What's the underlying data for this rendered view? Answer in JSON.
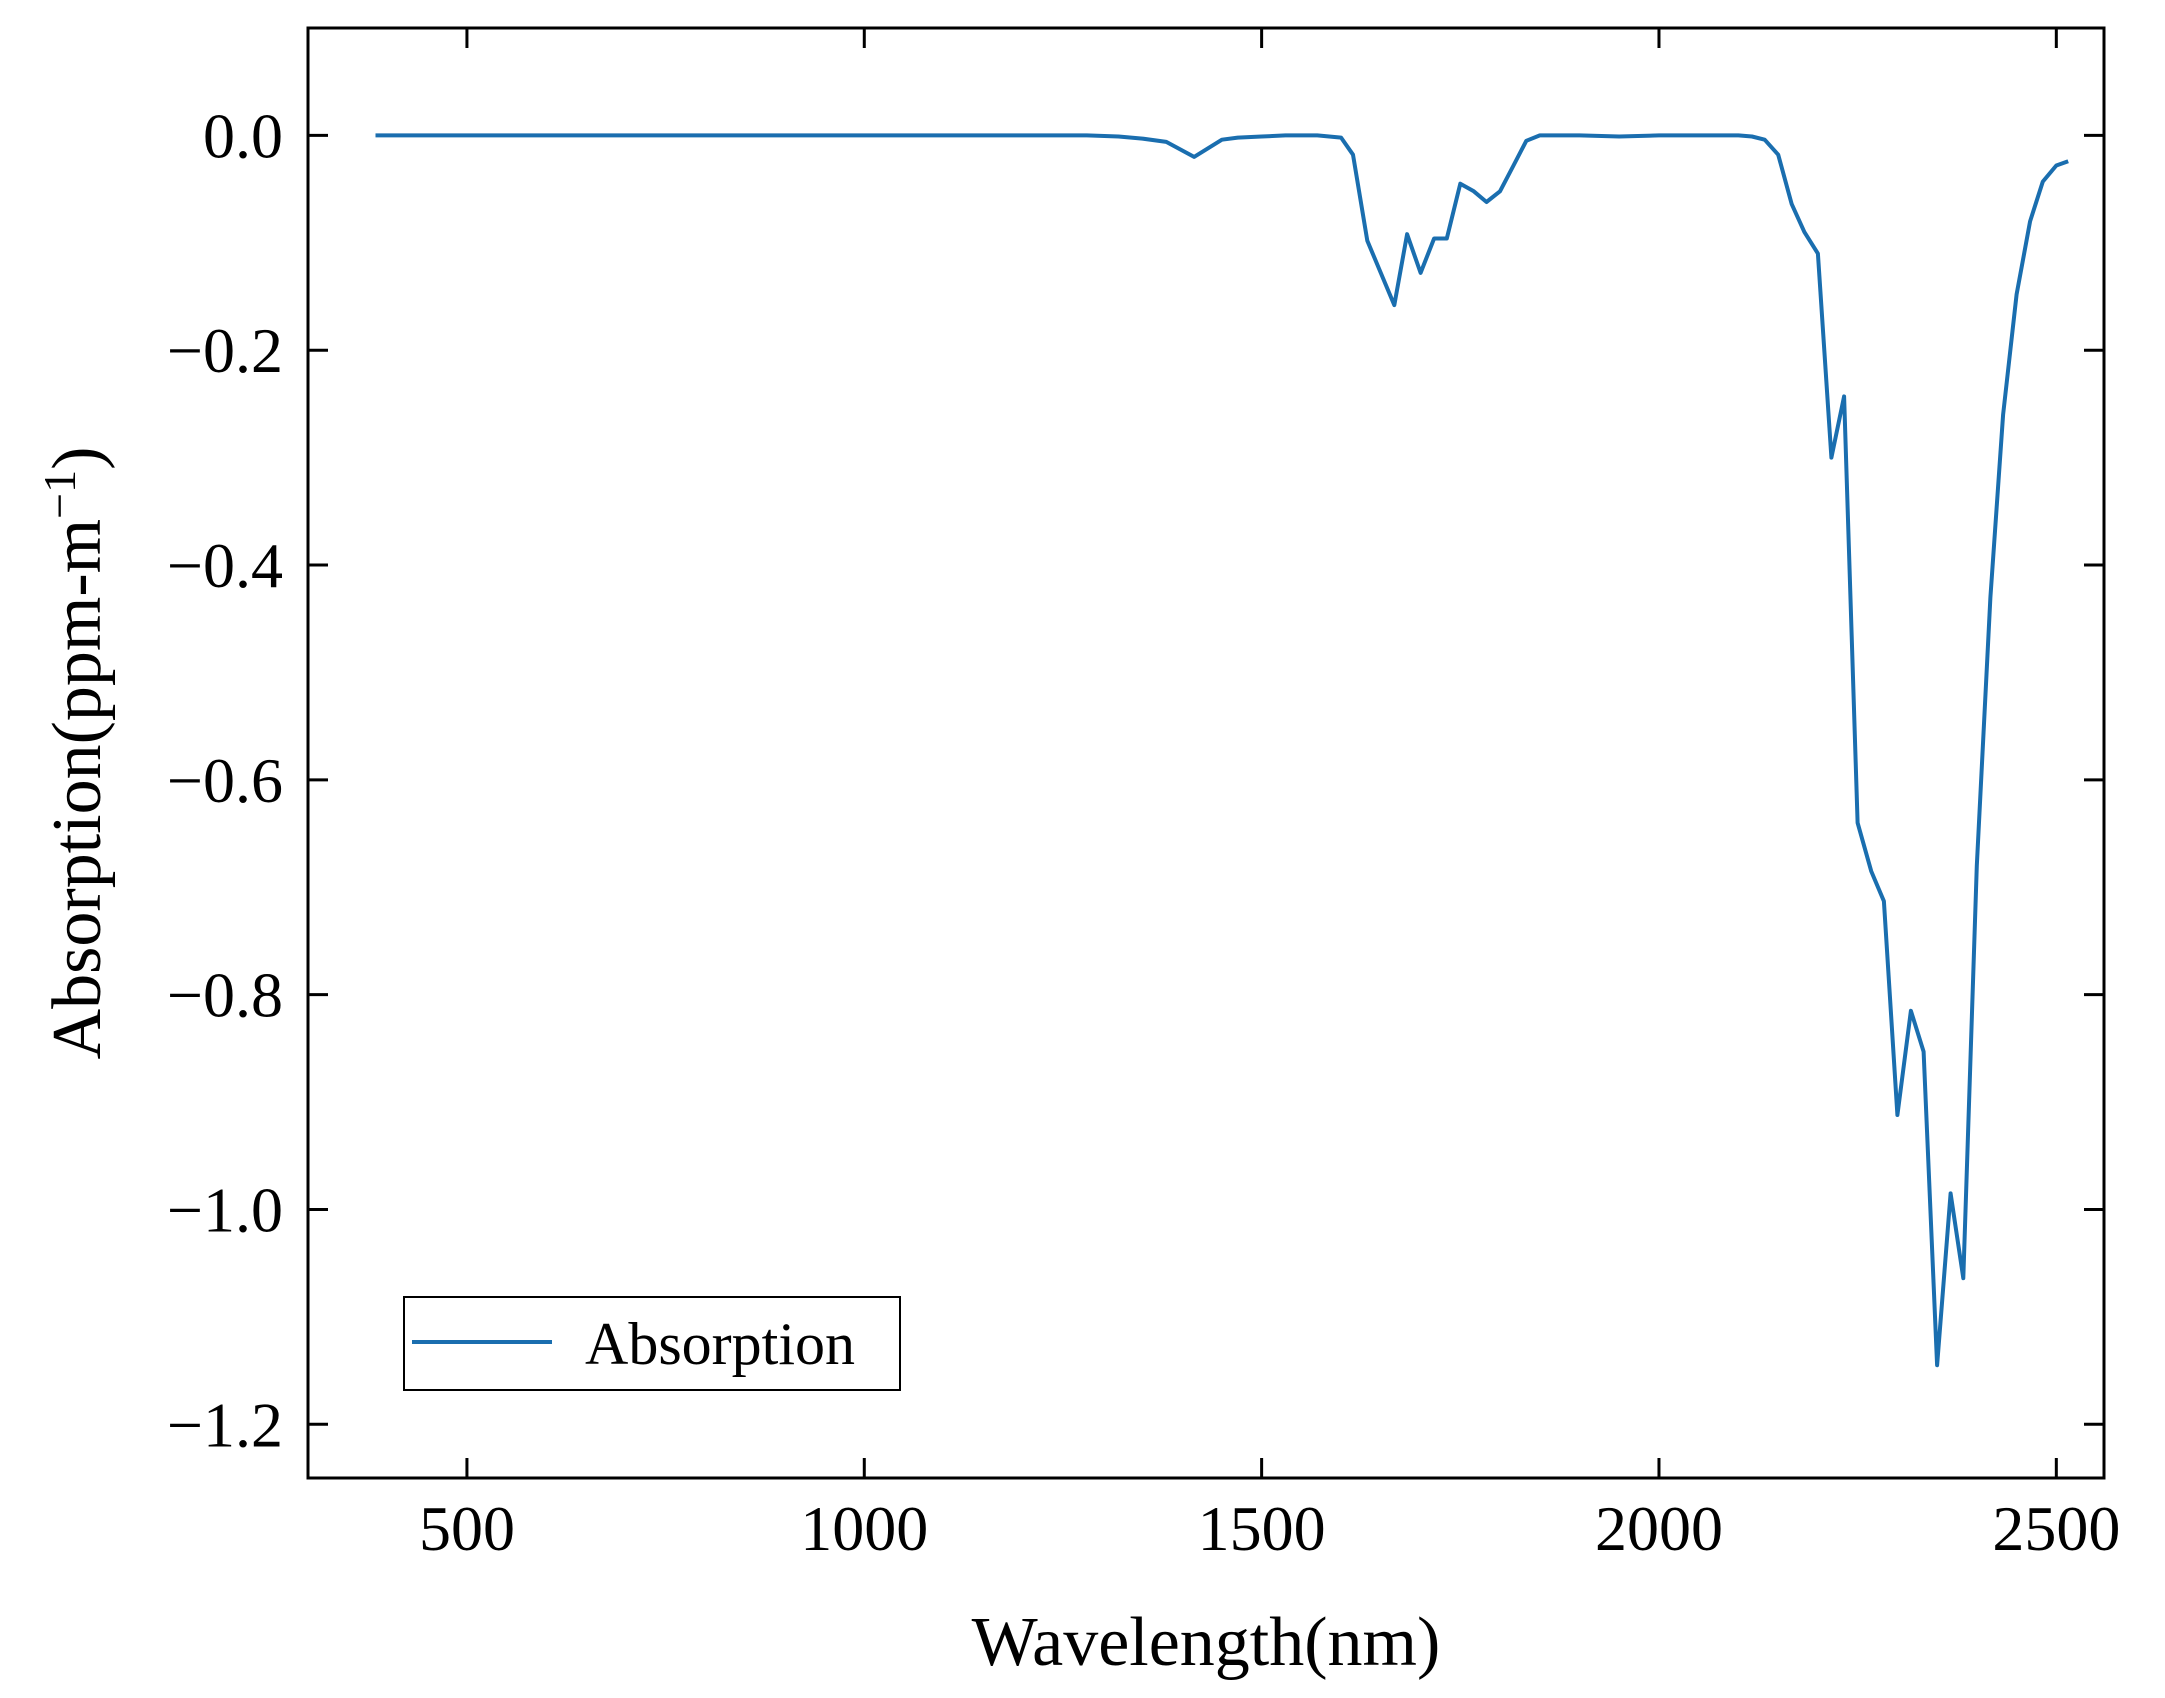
{
  "chart_data": {
    "type": "line",
    "title": "",
    "xlabel": "Wavelength(nm)",
    "ylabel_main": "Absorption(ppm-m",
    "ylabel_sup": "−1",
    "ylabel_close": ")",
    "xlim": [
      300,
      2560
    ],
    "ylim": [
      -1.25,
      0.1
    ],
    "xticks": [
      500,
      1000,
      1500,
      2000,
      2500
    ],
    "xtick_labels": [
      "500",
      "1000",
      "1500",
      "2000",
      "2500"
    ],
    "yticks": [
      0.0,
      -0.2,
      -0.4,
      -0.6,
      -0.8,
      -1.0,
      -1.2
    ],
    "ytick_labels": [
      "0.0",
      "−0.2",
      "−0.4",
      "−0.6",
      "−0.8",
      "−1.0",
      "−1.2"
    ],
    "grid": false,
    "legend_position": "bottom-left",
    "series": [
      {
        "name": "Absorption",
        "color": "#1a6eaf",
        "x": [
          385,
          450,
          600,
          800,
          1000,
          1200,
          1280,
          1320,
          1350,
          1380,
          1415,
          1450,
          1470,
          1500,
          1530,
          1570,
          1600,
          1615,
          1633,
          1667,
          1683,
          1700,
          1717,
          1733,
          1750,
          1767,
          1783,
          1800,
          1817,
          1833,
          1850,
          1900,
          1950,
          2000,
          2050,
          2100,
          2117,
          2133,
          2150,
          2167,
          2183,
          2200,
          2217,
          2233,
          2250,
          2267,
          2283,
          2300,
          2317,
          2333,
          2350,
          2367,
          2383,
          2400,
          2417,
          2433,
          2450,
          2467,
          2483,
          2500,
          2515
        ],
        "y": [
          0.0,
          0.0,
          0.0,
          0.0,
          0.0,
          0.0,
          0.0,
          -0.001,
          -0.003,
          -0.006,
          -0.02,
          -0.004,
          -0.002,
          -0.001,
          0.0,
          0.0,
          -0.002,
          -0.018,
          -0.098,
          -0.158,
          -0.092,
          -0.128,
          -0.096,
          -0.096,
          -0.045,
          -0.052,
          -0.062,
          -0.052,
          -0.028,
          -0.005,
          0.0,
          0.0,
          -0.001,
          0.0,
          0.0,
          0.0,
          -0.001,
          -0.004,
          -0.018,
          -0.064,
          -0.09,
          -0.11,
          -0.3,
          -0.243,
          -0.64,
          -0.685,
          -0.713,
          -0.912,
          -0.815,
          -0.853,
          -1.145,
          -0.985,
          -1.064,
          -0.68,
          -0.43,
          -0.26,
          -0.148,
          -0.08,
          -0.043,
          -0.028,
          -0.024
        ]
      }
    ]
  }
}
